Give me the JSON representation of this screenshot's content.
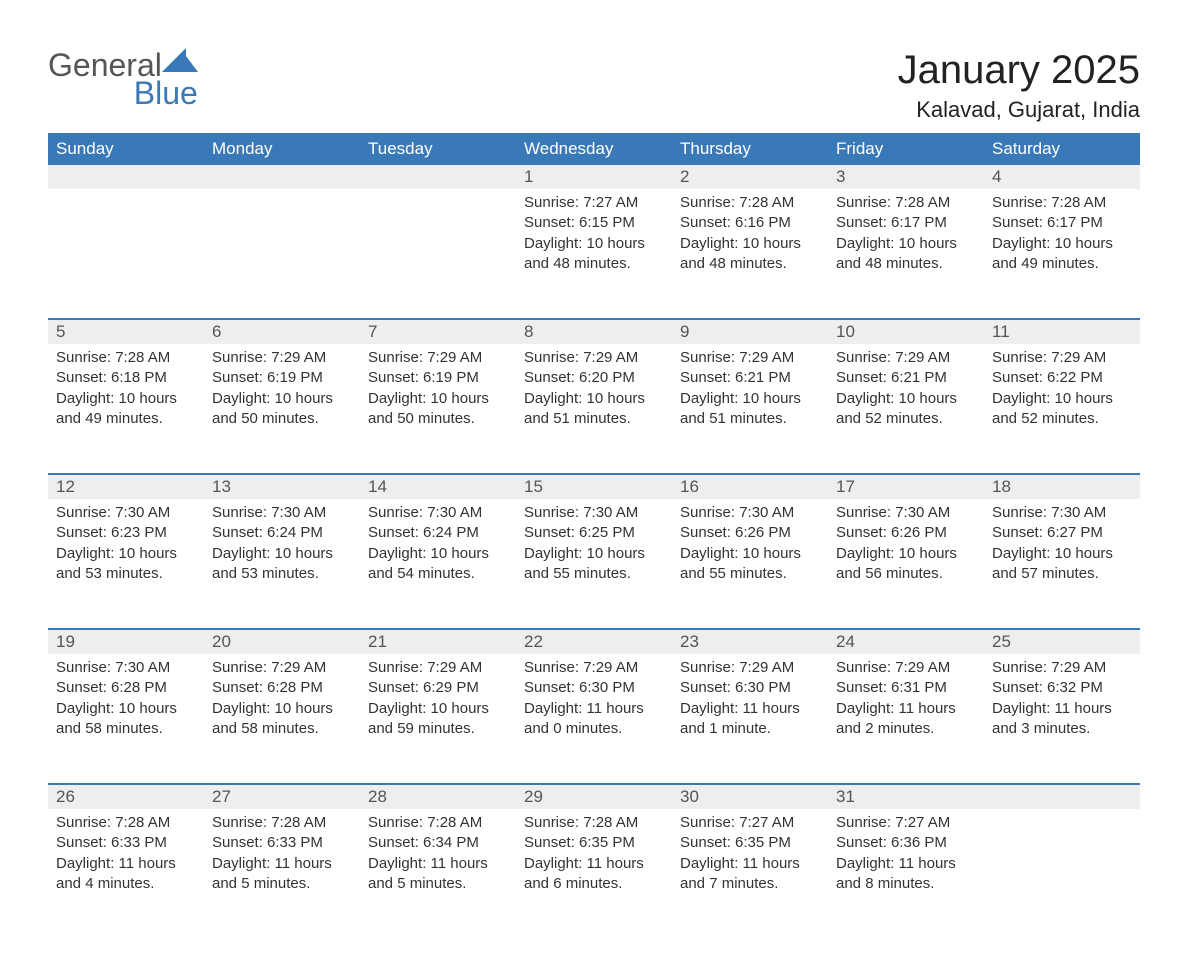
{
  "brand": {
    "word1": "General",
    "word2": "Blue",
    "color_primary": "#3a79b7",
    "color_text": "#555"
  },
  "title": "January 2025",
  "subtitle": "Kalavad, Gujarat, India",
  "columns": [
    "Sunday",
    "Monday",
    "Tuesday",
    "Wednesday",
    "Thursday",
    "Friday",
    "Saturday"
  ],
  "colors": {
    "header_bg": "#3a79b7",
    "header_text": "#ffffff",
    "daynum_bg": "#eeeeee",
    "row_accent": "#3a79b7",
    "body_text": "#333333",
    "page_bg": "#ffffff"
  },
  "typography": {
    "title_fontsize": 40,
    "subtitle_fontsize": 22,
    "header_fontsize": 17,
    "body_fontsize": 15
  },
  "weeks": [
    {
      "days": [
        null,
        null,
        null,
        {
          "n": "1",
          "sunrise": "Sunrise: 7:27 AM",
          "sunset": "Sunset: 6:15 PM",
          "daylight": "Daylight: 10 hours and 48 minutes."
        },
        {
          "n": "2",
          "sunrise": "Sunrise: 7:28 AM",
          "sunset": "Sunset: 6:16 PM",
          "daylight": "Daylight: 10 hours and 48 minutes."
        },
        {
          "n": "3",
          "sunrise": "Sunrise: 7:28 AM",
          "sunset": "Sunset: 6:17 PM",
          "daylight": "Daylight: 10 hours and 48 minutes."
        },
        {
          "n": "4",
          "sunrise": "Sunrise: 7:28 AM",
          "sunset": "Sunset: 6:17 PM",
          "daylight": "Daylight: 10 hours and 49 minutes."
        }
      ]
    },
    {
      "days": [
        {
          "n": "5",
          "sunrise": "Sunrise: 7:28 AM",
          "sunset": "Sunset: 6:18 PM",
          "daylight": "Daylight: 10 hours and 49 minutes."
        },
        {
          "n": "6",
          "sunrise": "Sunrise: 7:29 AM",
          "sunset": "Sunset: 6:19 PM",
          "daylight": "Daylight: 10 hours and 50 minutes."
        },
        {
          "n": "7",
          "sunrise": "Sunrise: 7:29 AM",
          "sunset": "Sunset: 6:19 PM",
          "daylight": "Daylight: 10 hours and 50 minutes."
        },
        {
          "n": "8",
          "sunrise": "Sunrise: 7:29 AM",
          "sunset": "Sunset: 6:20 PM",
          "daylight": "Daylight: 10 hours and 51 minutes."
        },
        {
          "n": "9",
          "sunrise": "Sunrise: 7:29 AM",
          "sunset": "Sunset: 6:21 PM",
          "daylight": "Daylight: 10 hours and 51 minutes."
        },
        {
          "n": "10",
          "sunrise": "Sunrise: 7:29 AM",
          "sunset": "Sunset: 6:21 PM",
          "daylight": "Daylight: 10 hours and 52 minutes."
        },
        {
          "n": "11",
          "sunrise": "Sunrise: 7:29 AM",
          "sunset": "Sunset: 6:22 PM",
          "daylight": "Daylight: 10 hours and 52 minutes."
        }
      ]
    },
    {
      "days": [
        {
          "n": "12",
          "sunrise": "Sunrise: 7:30 AM",
          "sunset": "Sunset: 6:23 PM",
          "daylight": "Daylight: 10 hours and 53 minutes."
        },
        {
          "n": "13",
          "sunrise": "Sunrise: 7:30 AM",
          "sunset": "Sunset: 6:24 PM",
          "daylight": "Daylight: 10 hours and 53 minutes."
        },
        {
          "n": "14",
          "sunrise": "Sunrise: 7:30 AM",
          "sunset": "Sunset: 6:24 PM",
          "daylight": "Daylight: 10 hours and 54 minutes."
        },
        {
          "n": "15",
          "sunrise": "Sunrise: 7:30 AM",
          "sunset": "Sunset: 6:25 PM",
          "daylight": "Daylight: 10 hours and 55 minutes."
        },
        {
          "n": "16",
          "sunrise": "Sunrise: 7:30 AM",
          "sunset": "Sunset: 6:26 PM",
          "daylight": "Daylight: 10 hours and 55 minutes."
        },
        {
          "n": "17",
          "sunrise": "Sunrise: 7:30 AM",
          "sunset": "Sunset: 6:26 PM",
          "daylight": "Daylight: 10 hours and 56 minutes."
        },
        {
          "n": "18",
          "sunrise": "Sunrise: 7:30 AM",
          "sunset": "Sunset: 6:27 PM",
          "daylight": "Daylight: 10 hours and 57 minutes."
        }
      ]
    },
    {
      "days": [
        {
          "n": "19",
          "sunrise": "Sunrise: 7:30 AM",
          "sunset": "Sunset: 6:28 PM",
          "daylight": "Daylight: 10 hours and 58 minutes."
        },
        {
          "n": "20",
          "sunrise": "Sunrise: 7:29 AM",
          "sunset": "Sunset: 6:28 PM",
          "daylight": "Daylight: 10 hours and 58 minutes."
        },
        {
          "n": "21",
          "sunrise": "Sunrise: 7:29 AM",
          "sunset": "Sunset: 6:29 PM",
          "daylight": "Daylight: 10 hours and 59 minutes."
        },
        {
          "n": "22",
          "sunrise": "Sunrise: 7:29 AM",
          "sunset": "Sunset: 6:30 PM",
          "daylight": "Daylight: 11 hours and 0 minutes."
        },
        {
          "n": "23",
          "sunrise": "Sunrise: 7:29 AM",
          "sunset": "Sunset: 6:30 PM",
          "daylight": "Daylight: 11 hours and 1 minute."
        },
        {
          "n": "24",
          "sunrise": "Sunrise: 7:29 AM",
          "sunset": "Sunset: 6:31 PM",
          "daylight": "Daylight: 11 hours and 2 minutes."
        },
        {
          "n": "25",
          "sunrise": "Sunrise: 7:29 AM",
          "sunset": "Sunset: 6:32 PM",
          "daylight": "Daylight: 11 hours and 3 minutes."
        }
      ]
    },
    {
      "days": [
        {
          "n": "26",
          "sunrise": "Sunrise: 7:28 AM",
          "sunset": "Sunset: 6:33 PM",
          "daylight": "Daylight: 11 hours and 4 minutes."
        },
        {
          "n": "27",
          "sunrise": "Sunrise: 7:28 AM",
          "sunset": "Sunset: 6:33 PM",
          "daylight": "Daylight: 11 hours and 5 minutes."
        },
        {
          "n": "28",
          "sunrise": "Sunrise: 7:28 AM",
          "sunset": "Sunset: 6:34 PM",
          "daylight": "Daylight: 11 hours and 5 minutes."
        },
        {
          "n": "29",
          "sunrise": "Sunrise: 7:28 AM",
          "sunset": "Sunset: 6:35 PM",
          "daylight": "Daylight: 11 hours and 6 minutes."
        },
        {
          "n": "30",
          "sunrise": "Sunrise: 7:27 AM",
          "sunset": "Sunset: 6:35 PM",
          "daylight": "Daylight: 11 hours and 7 minutes."
        },
        {
          "n": "31",
          "sunrise": "Sunrise: 7:27 AM",
          "sunset": "Sunset: 6:36 PM",
          "daylight": "Daylight: 11 hours and 8 minutes."
        },
        null
      ]
    }
  ]
}
